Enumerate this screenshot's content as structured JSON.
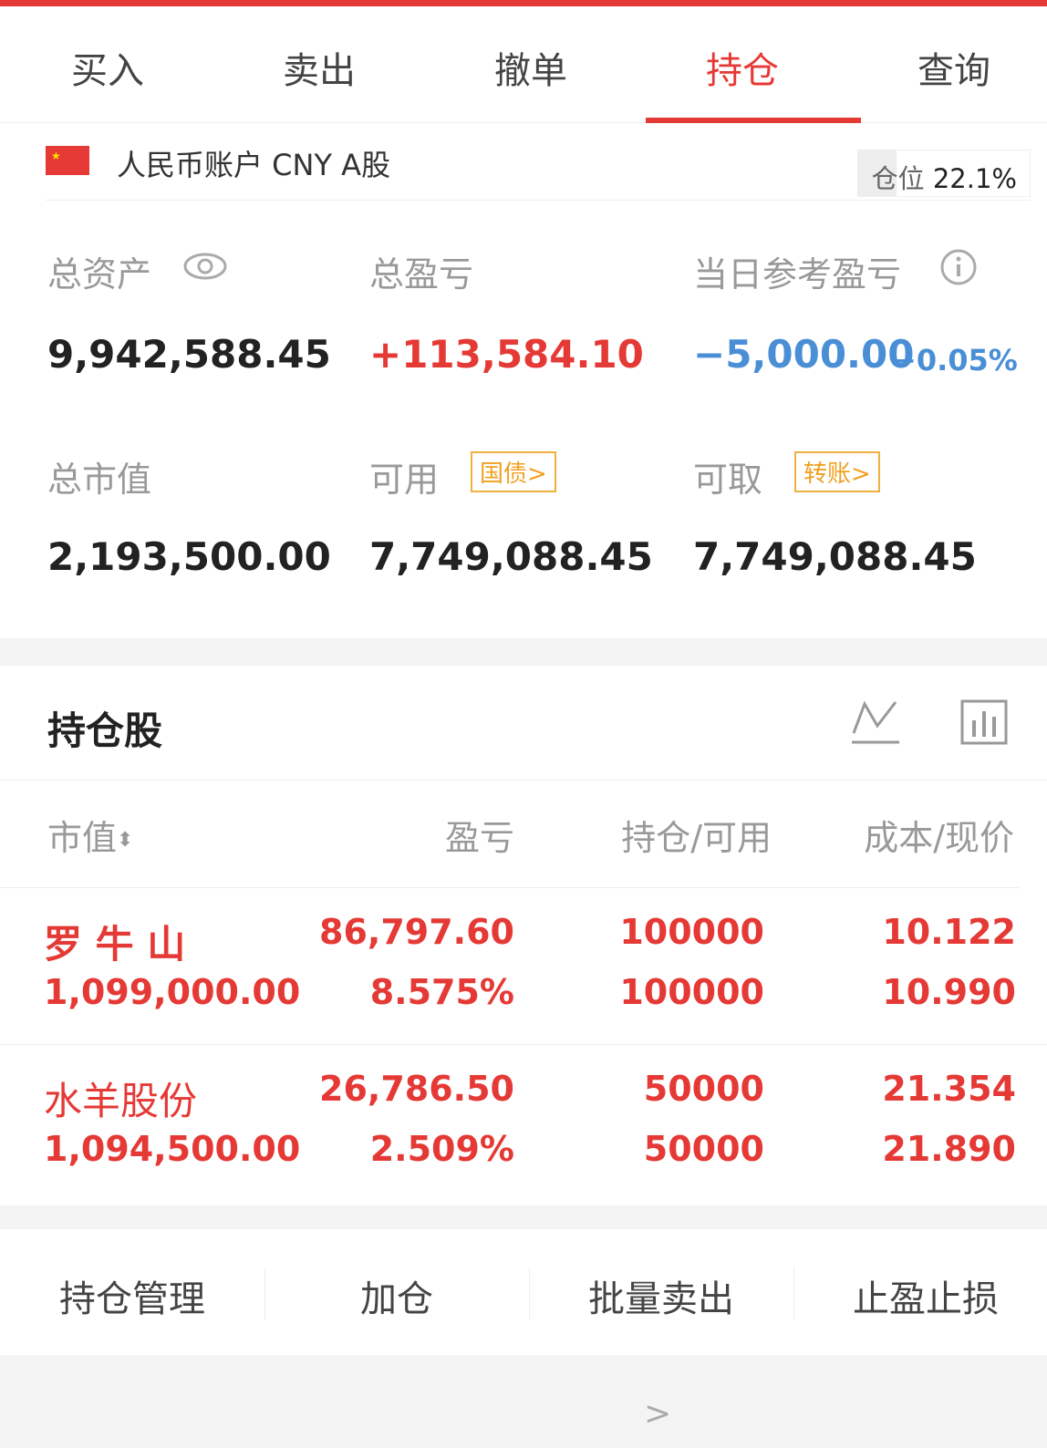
{
  "tabs": [
    "买入",
    "卖出",
    "撤单",
    "持仓",
    "查询"
  ],
  "active_tab": "持仓",
  "account": {
    "name": "人民币账户 CNY A股",
    "position_label": "仓位",
    "position_value": "22.1%",
    "position_fraction": 0.221
  },
  "summary": {
    "total_assets_label": "总资产",
    "total_assets": "9,942,588.45",
    "total_pl_label": "总盈亏",
    "total_pl": "+113,584.10",
    "daily_pl_label": "当日参考盈亏",
    "daily_pl": "−5,000.00",
    "daily_pl_pct": "−0.05%",
    "market_value_label": "总市值",
    "market_value": "2,193,500.00",
    "available_label": "可用",
    "available_badge": "国债>",
    "available": "7,749,088.45",
    "withdrawable_label": "可取",
    "withdrawable_badge": "转账>",
    "withdrawable": "7,749,088.45"
  },
  "holdings": {
    "title": "持仓股",
    "headers": [
      "市值",
      "盈亏",
      "持仓/可用",
      "成本/现价"
    ],
    "rows": [
      {
        "name": "罗 牛 山",
        "market_value": "1,099,000.00",
        "pl": "86,797.60",
        "pl_pct": "8.575%",
        "position": "100000",
        "available": "100000",
        "cost": "10.122",
        "price": "10.990"
      },
      {
        "name": "水羊股份",
        "market_value": "1,094,500.00",
        "pl": "26,786.50",
        "pl_pct": "2.509%",
        "position": "50000",
        "available": "50000",
        "cost": "21.354",
        "price": "21.890"
      }
    ]
  },
  "actions": [
    "持仓管理",
    "加仓",
    "批量卖出",
    "止盈止损"
  ],
  "colors": {
    "accent": "#e53935",
    "negative": "#4a8fd6",
    "badge": "#f0a020"
  }
}
